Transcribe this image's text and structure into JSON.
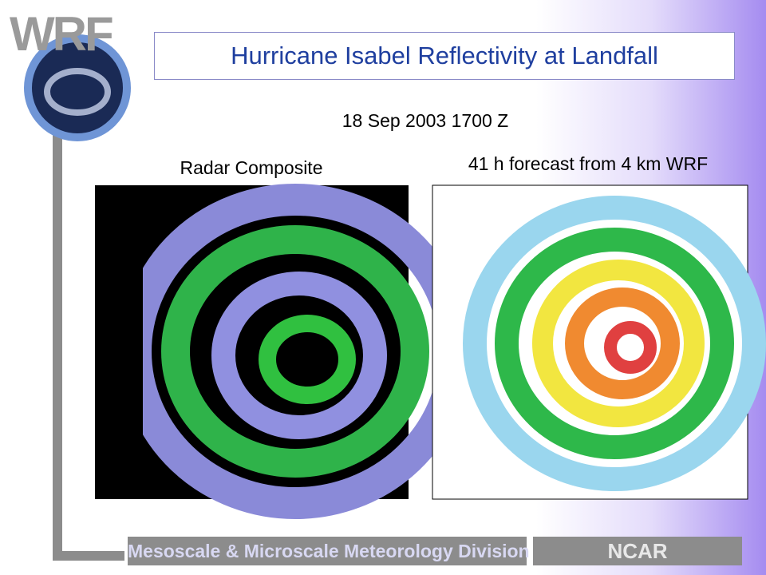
{
  "logo": {
    "text": "WRF"
  },
  "slide": {
    "title": "Hurricane Isabel Reflectivity at Landfall",
    "date": "18 Sep 2003 1700 Z",
    "left_caption": "Radar Composite",
    "right_caption": "41 h forecast from 4 km WRF"
  },
  "footer": {
    "division": "Mesoscale & Microscale Meteorology Division",
    "org": "NCAR"
  }
}
